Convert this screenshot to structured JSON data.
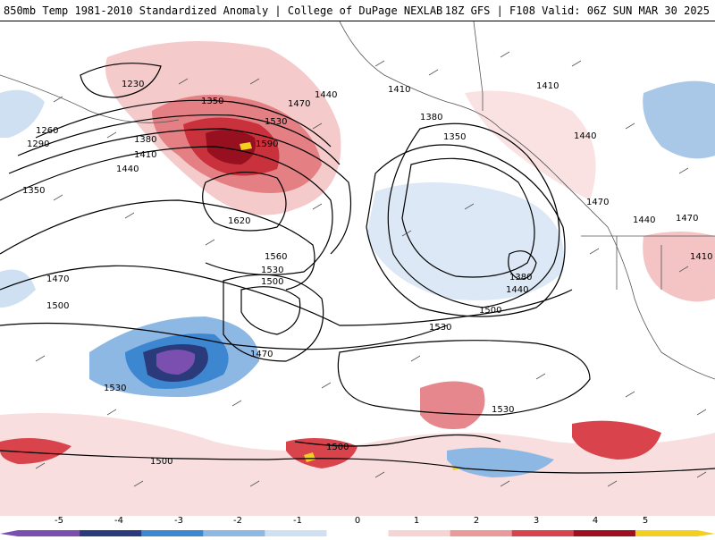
{
  "header": {
    "title": "850mb Temp 1981-2010 Standardized Anomaly | College of DuPage NEXLAB",
    "run_info": "18Z GFS | F108 Valid: 06Z SUN MAR 30 2025"
  },
  "map": {
    "contour_labels": [
      "1230",
      "1260",
      "1290",
      "1350",
      "1350",
      "1380",
      "1410",
      "1440",
      "1440",
      "1470",
      "1530",
      "1590",
      "1620",
      "1560",
      "1530",
      "1500",
      "1470",
      "1500",
      "1470",
      "1530",
      "1410",
      "1380",
      "1350",
      "1380",
      "1440",
      "1500",
      "1530",
      "1530",
      "1500",
      "1500",
      "1440",
      "1470",
      "1440",
      "1470",
      "1410",
      "1410"
    ]
  },
  "colorbar": {
    "labels": [
      "-5",
      "-4",
      "-3",
      "-2",
      "-1",
      "0",
      "1",
      "2",
      "3",
      "4",
      "5"
    ],
    "colors": [
      "#7b4fb0",
      "#2b3a7a",
      "#3d86d0",
      "#8db8e4",
      "#cfe0f2",
      "#ffffff",
      "#f6d4d4",
      "#ea9a9a",
      "#d9434c",
      "#9c1020",
      "#f2d020"
    ]
  }
}
